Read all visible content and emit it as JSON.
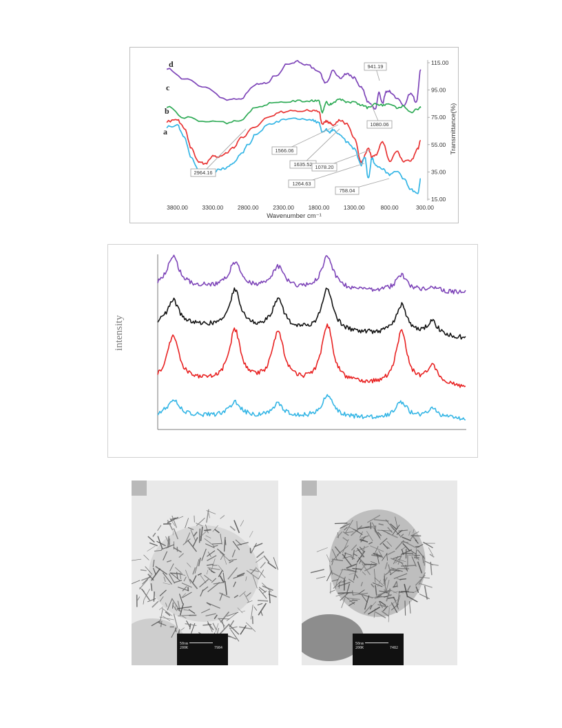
{
  "chart_data": [
    {
      "type": "line",
      "title": "",
      "xlabel": "Wavenumber cm⁻¹",
      "ylabel": "Transmittance(%)",
      "xlim": [
        4000,
        300
      ],
      "x_reversed": true,
      "ylim": [
        15,
        115
      ],
      "x_ticks": [
        3800,
        3300,
        2800,
        2300,
        1800,
        1300,
        800,
        300
      ],
      "x_tick_labels": [
        "3800.00",
        "3300.00",
        "2800.00",
        "2300.00",
        "1800.00",
        "1300.00",
        "800.00",
        "300.00"
      ],
      "y_ticks": [
        15,
        35,
        55,
        75,
        95,
        115
      ],
      "y_tick_labels": [
        "15.00",
        "35.00",
        "55.00",
        "75.00",
        "95.00",
        "115.00"
      ],
      "y_axis_position": "right",
      "grid": false,
      "series": [
        {
          "name": "d",
          "color": "#7d44b8",
          "x": [
            3950,
            3700,
            3400,
            3100,
            2900,
            2700,
            2550,
            2400,
            2250,
            2100,
            1950,
            1800,
            1700,
            1600,
            1500,
            1400,
            1300,
            1200,
            1100,
            1000,
            950,
            900,
            850,
            800,
            700,
            600,
            500,
            420,
            360
          ],
          "y": [
            111,
            103,
            97,
            88,
            89,
            99,
            100,
            106,
            114,
            116,
            113,
            108,
            100,
            109,
            104,
            107,
            104,
            97,
            86,
            81,
            93,
            85,
            94,
            94,
            89,
            84,
            93,
            86,
            110
          ]
        },
        {
          "name": "c",
          "color": "#2daa55",
          "x": [
            3950,
            3700,
            3400,
            3100,
            2900,
            2700,
            2500,
            2300,
            2100,
            1900,
            1800,
            1750,
            1700,
            1650,
            1600,
            1500,
            1400,
            1300,
            1200,
            1100,
            1000,
            900,
            800,
            700,
            600,
            500,
            400,
            360
          ],
          "y": [
            83,
            75,
            72,
            71,
            73,
            82,
            85,
            86,
            87,
            87,
            87,
            79,
            86,
            84,
            86,
            88,
            86,
            86,
            84,
            82,
            85,
            84,
            85,
            82,
            83,
            79,
            81,
            82
          ]
        },
        {
          "name": "b",
          "color": "#e83232",
          "x": [
            3950,
            3800,
            3700,
            3600,
            3500,
            3400,
            3300,
            3200,
            3100,
            3000,
            2900,
            2700,
            2500,
            2300,
            2100,
            1900,
            1800,
            1750,
            1700,
            1650,
            1600,
            1500,
            1400,
            1300,
            1200,
            1100,
            1050,
            1000,
            900,
            800,
            700,
            600,
            500,
            400,
            360
          ],
          "y": [
            72,
            73,
            67,
            52,
            42,
            41,
            47,
            46,
            49,
            53,
            60,
            68,
            76,
            79,
            80,
            80,
            79,
            70,
            72,
            71,
            69,
            73,
            70,
            60,
            42,
            52,
            46,
            47,
            57,
            43,
            50,
            43,
            43,
            52,
            58
          ]
        },
        {
          "name": "a",
          "color": "#33b5e5",
          "x": [
            3950,
            3800,
            3700,
            3600,
            3500,
            3400,
            3300,
            3200,
            3100,
            3000,
            2900,
            2800,
            2700,
            2500,
            2300,
            2100,
            1900,
            1800,
            1750,
            1700,
            1650,
            1600,
            1500,
            1400,
            1300,
            1200,
            1150,
            1100,
            1050,
            1000,
            900,
            800,
            700,
            600,
            500,
            400,
            360
          ],
          "y": [
            68,
            69,
            60,
            45,
            36,
            34,
            34,
            37,
            38,
            42,
            48,
            55,
            62,
            70,
            73,
            74,
            73,
            71,
            64,
            66,
            64,
            66,
            62,
            57,
            52,
            40,
            46,
            30,
            45,
            40,
            37,
            33,
            36,
            30,
            22,
            19,
            30
          ]
        }
      ],
      "annotations": [
        "941.19",
        "1080.06",
        "1566.06",
        "1635.52",
        "2964.16",
        "1078.20",
        "1264.63",
        "758.04"
      ],
      "curve_labels": [
        "d",
        "c",
        "b",
        "a"
      ]
    },
    {
      "type": "line",
      "title": "",
      "xlabel": "",
      "ylabel": "intensity",
      "x_ticks": [],
      "y_ticks": [],
      "grid": false,
      "xlim": [
        0,
        100
      ],
      "ylim": [
        0,
        100
      ],
      "series": [
        {
          "color": "#7d44b8",
          "offset": 78,
          "peaks": [
            [
              5,
              17
            ],
            [
              25,
              14
            ],
            [
              39,
              12
            ],
            [
              55,
              19
            ],
            [
              79,
              9
            ],
            [
              89,
              3
            ]
          ],
          "baseline": 2
        },
        {
          "color": "#111111",
          "offset": 52,
          "peaks": [
            [
              5,
              14
            ],
            [
              25,
              21
            ],
            [
              39,
              17
            ],
            [
              55,
              24
            ],
            [
              79,
              17
            ],
            [
              89,
              8
            ]
          ],
          "baseline": 4
        },
        {
          "color": "#e82020",
          "offset": 24,
          "peaks": [
            [
              5,
              26
            ],
            [
              25,
              29
            ],
            [
              39,
              29
            ],
            [
              55,
              33
            ],
            [
              79,
              30
            ],
            [
              89,
              11
            ]
          ],
          "baseline": 2
        },
        {
          "color": "#33b5e5",
          "offset": 6,
          "peaks": [
            [
              5,
              9
            ],
            [
              25,
              8
            ],
            [
              39,
              7
            ],
            [
              55,
              12
            ],
            [
              79,
              9
            ],
            [
              89,
              5
            ]
          ],
          "baseline": 1
        }
      ]
    }
  ],
  "tem_images": [
    {
      "scale_label": "50nm",
      "magnification": "200K",
      "frame": "7984"
    },
    {
      "scale_label": "50nm",
      "magnification": "200K",
      "frame": "7482"
    }
  ]
}
